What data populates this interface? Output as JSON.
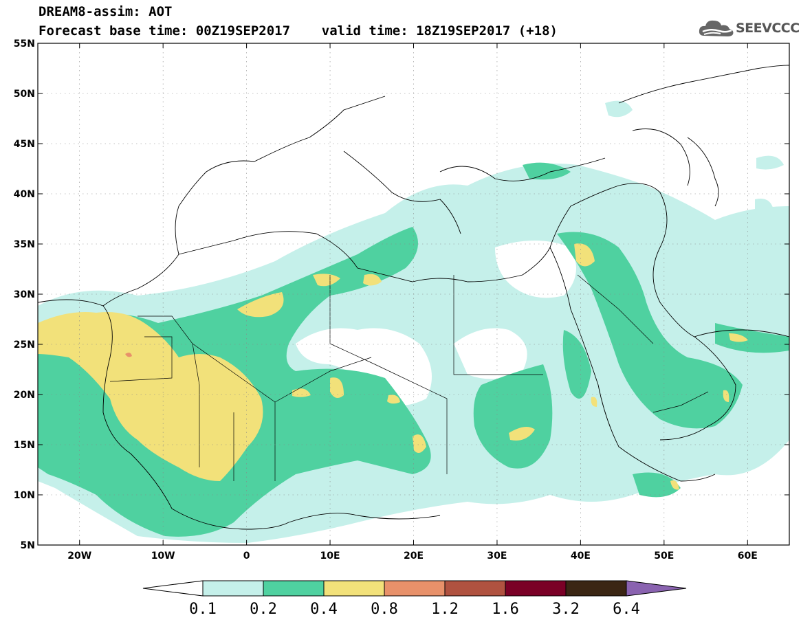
{
  "header": {
    "line1": "DREAM8-assim: AOT",
    "line2": "Forecast base time: 00Z19SEP2017    valid time: 18Z19SEP2017 (+18)"
  },
  "logo": {
    "text": "SEEVCCC",
    "icon": "cloud-icon"
  },
  "map": {
    "lon_range": [
      -25,
      65
    ],
    "lat_range": [
      5,
      55
    ],
    "lat_ticks": [
      {
        "lat": 55,
        "label": "55N"
      },
      {
        "lat": 50,
        "label": "50N"
      },
      {
        "lat": 45,
        "label": "45N"
      },
      {
        "lat": 40,
        "label": "40N"
      },
      {
        "lat": 35,
        "label": "35N"
      },
      {
        "lat": 30,
        "label": "30N"
      },
      {
        "lat": 25,
        "label": "25N"
      },
      {
        "lat": 20,
        "label": "20N"
      },
      {
        "lat": 15,
        "label": "15N"
      },
      {
        "lat": 10,
        "label": "10N"
      },
      {
        "lat": 5,
        "label": "5N"
      }
    ],
    "lon_ticks": [
      {
        "lon": -20,
        "label": "20W"
      },
      {
        "lon": -10,
        "label": "10W"
      },
      {
        "lon": 0,
        "label": "0"
      },
      {
        "lon": 10,
        "label": "10E"
      },
      {
        "lon": 20,
        "label": "20E"
      },
      {
        "lon": 30,
        "label": "30E"
      },
      {
        "lon": 40,
        "label": "40E"
      },
      {
        "lon": 50,
        "label": "50E"
      },
      {
        "lon": 60,
        "label": "60E"
      }
    ],
    "grid": true
  },
  "colorbar": {
    "levels": [
      "0.1",
      "0.2",
      "0.4",
      "0.8",
      "1.2",
      "1.6",
      "3.2",
      "6.4"
    ],
    "colors": [
      "#ffffff",
      "#c5f0ea",
      "#4fd1a0",
      "#f2e17a",
      "#e8916a",
      "#b05240",
      "#7a0026",
      "#3b2614",
      "#8a63b0"
    ]
  }
}
